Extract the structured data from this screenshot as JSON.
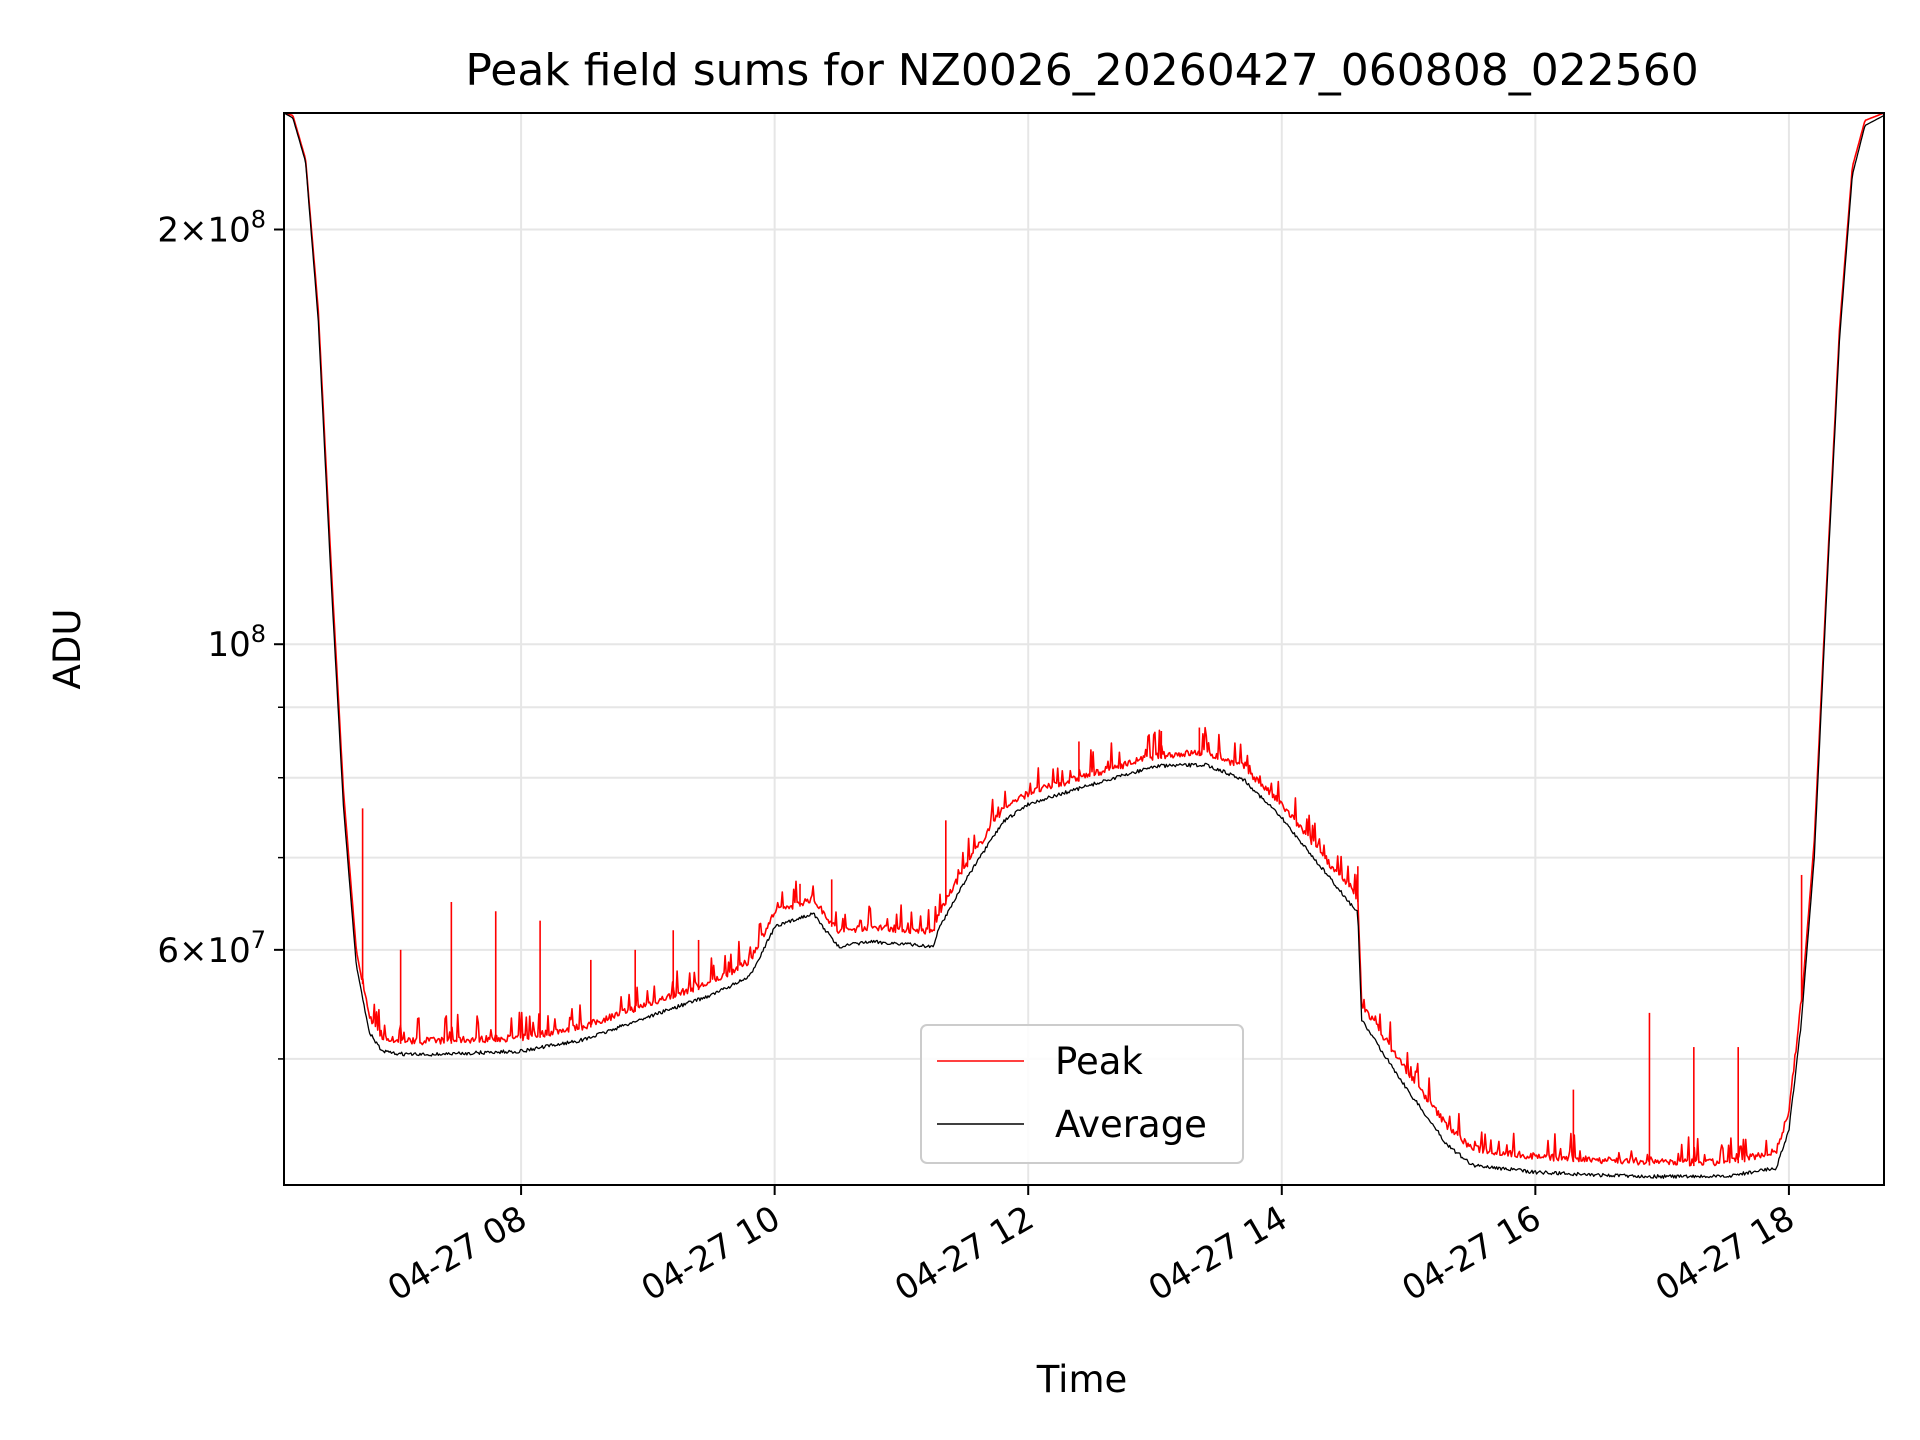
{
  "chart_data": {
    "type": "line",
    "title": "Peak field sums for NZ0026_20260427_060808_022560",
    "xlabel": "Time",
    "ylabel": "ADU",
    "x_range": [
      "2026-04-27 06:08",
      "2026-04-27 18:45"
    ],
    "x_ticks": [
      "04-27 08",
      "04-27 10",
      "04-27 12",
      "04-27 14",
      "04-27 16",
      "04-27 18"
    ],
    "y_scale": "log",
    "ylim": [
      40500000,
      243000000
    ],
    "y_ticks_major": [
      {
        "value": 200000000,
        "base": "2×10",
        "exp": "8"
      },
      {
        "value": 100000000,
        "base": "10",
        "exp": "8"
      },
      {
        "value": 60000000,
        "base": "6×10",
        "exp": "7"
      }
    ],
    "y_ticks_minor": [
      50000000,
      70000000,
      80000000,
      90000000
    ],
    "grid": true,
    "legend_location": "lower center",
    "series": [
      {
        "name": "Peak",
        "color": "#ff0000",
        "x_hours": [
          6.13,
          6.2,
          6.3,
          6.4,
          6.5,
          6.6,
          6.7,
          6.8,
          6.9,
          7.0,
          7.2,
          7.5,
          8.0,
          8.5,
          9.0,
          9.5,
          9.8,
          10.0,
          10.3,
          10.5,
          10.75,
          11.0,
          11.25,
          11.3,
          11.5,
          11.8,
          12.0,
          12.5,
          13.0,
          13.4,
          13.7,
          14.0,
          14.6,
          14.63,
          15.0,
          15.3,
          15.5,
          16.0,
          16.5,
          17.0,
          17.5,
          17.9,
          18.0,
          18.1,
          18.2,
          18.3,
          18.4,
          18.5,
          18.6,
          18.75
        ],
        "values": [
          243000000,
          242000000,
          225000000,
          175000000,
          115000000,
          78000000,
          60000000,
          53500000,
          51500000,
          51300000,
          51200000,
          51300000,
          51500000,
          52500000,
          54500000,
          56500000,
          58500000,
          63500000,
          65000000,
          61500000,
          62000000,
          61700000,
          61500000,
          63500000,
          68500000,
          75500000,
          77500000,
          80000000,
          82500000,
          83000000,
          81000000,
          76000000,
          65000000,
          54500000,
          48500000,
          44500000,
          42800000,
          42200000,
          42000000,
          41800000,
          41800000,
          42600000,
          45500000,
          55000000,
          72000000,
          112000000,
          170000000,
          222000000,
          240000000,
          243000000
        ],
        "spikes": [
          {
            "x": 6.75,
            "value": 76000000
          },
          {
            "x": 7.05,
            "value": 60000000
          },
          {
            "x": 7.45,
            "value": 65000000
          },
          {
            "x": 7.8,
            "value": 64000000
          },
          {
            "x": 8.15,
            "value": 63000000
          },
          {
            "x": 8.55,
            "value": 59000000
          },
          {
            "x": 8.9,
            "value": 60000000
          },
          {
            "x": 9.2,
            "value": 62000000
          },
          {
            "x": 9.4,
            "value": 61000000
          },
          {
            "x": 10.2,
            "value": 67000000
          },
          {
            "x": 10.45,
            "value": 67500000
          },
          {
            "x": 11.35,
            "value": 74500000
          },
          {
            "x": 12.4,
            "value": 85000000
          },
          {
            "x": 13.05,
            "value": 86500000
          },
          {
            "x": 13.35,
            "value": 87000000
          },
          {
            "x": 14.6,
            "value": 69000000
          },
          {
            "x": 16.3,
            "value": 47500000
          },
          {
            "x": 16.9,
            "value": 54000000
          },
          {
            "x": 17.25,
            "value": 51000000
          },
          {
            "x": 17.6,
            "value": 51000000
          },
          {
            "x": 18.1,
            "value": 68000000
          }
        ]
      },
      {
        "name": "Average",
        "color": "#000000",
        "x_hours": [
          6.13,
          6.2,
          6.3,
          6.4,
          6.5,
          6.6,
          6.7,
          6.8,
          6.9,
          7.0,
          7.2,
          7.5,
          8.0,
          8.5,
          9.0,
          9.5,
          9.8,
          10.0,
          10.3,
          10.5,
          10.75,
          11.0,
          11.25,
          11.3,
          11.5,
          11.8,
          12.0,
          12.5,
          13.0,
          13.4,
          13.7,
          14.0,
          14.6,
          14.63,
          15.0,
          15.3,
          15.5,
          16.0,
          16.5,
          17.0,
          17.5,
          17.9,
          18.0,
          18.1,
          18.2,
          18.3,
          18.4,
          18.5,
          18.6,
          18.75
        ],
        "values": [
          243000000,
          241000000,
          224000000,
          172000000,
          112000000,
          76000000,
          58500000,
          52500000,
          50800000,
          50600000,
          50500000,
          50600000,
          50800000,
          51800000,
          53800000,
          55800000,
          57500000,
          62500000,
          64000000,
          60500000,
          61000000,
          60800000,
          60500000,
          62500000,
          67500000,
          74500000,
          76800000,
          79300000,
          81800000,
          82000000,
          80000000,
          75000000,
          64000000,
          53500000,
          47500000,
          43500000,
          42000000,
          41500000,
          41300000,
          41200000,
          41200000,
          41800000,
          44500000,
          53500000,
          70000000,
          110000000,
          167000000,
          219000000,
          238000000,
          242000000
        ]
      }
    ]
  }
}
